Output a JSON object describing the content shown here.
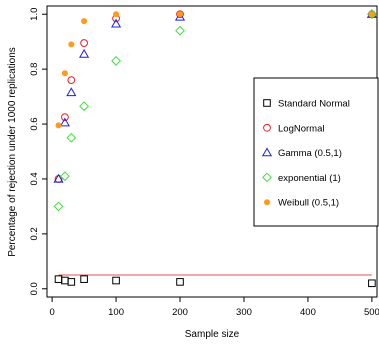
{
  "chart_data": {
    "type": "scatter",
    "title": "",
    "xlabel": "Sample size",
    "ylabel": "Percentage of rejection under 1000 replications",
    "xlim": [
      -8,
      508
    ],
    "ylim": [
      -0.03,
      1.03
    ],
    "x_ticks": [
      0,
      100,
      200,
      300,
      400,
      500
    ],
    "y_ticks": [
      0.0,
      0.2,
      0.4,
      0.6,
      0.8,
      1.0
    ],
    "x_tick_labels": [
      "0",
      "100",
      "200",
      "300",
      "400",
      "500"
    ],
    "y_tick_labels": [
      "0.0",
      "0.2",
      "0.4",
      "0.6",
      "0.8",
      "1.0"
    ],
    "grid": false,
    "legend_position": "right",
    "reference_line": {
      "y": 0.05,
      "x_range": [
        10,
        500
      ],
      "color": "#e05050"
    },
    "series": [
      {
        "name": "Standard Normal",
        "marker": "open-square",
        "color": "#000000",
        "x": [
          10,
          20,
          30,
          50,
          100,
          200,
          500
        ],
        "y": [
          0.035,
          0.03,
          0.025,
          0.035,
          0.03,
          0.025,
          0.02
        ]
      },
      {
        "name": "LogNormal",
        "marker": "open-circle",
        "color": "#e8212b",
        "x": [
          10,
          20,
          30,
          50,
          100,
          200,
          500
        ],
        "y": [
          0.4,
          0.625,
          0.76,
          0.895,
          0.985,
          1.0,
          1.0
        ]
      },
      {
        "name": "Gamma (0.5,1)",
        "marker": "open-triangle",
        "color": "#2020e0",
        "x": [
          10,
          20,
          30,
          50,
          100,
          200,
          500
        ],
        "y": [
          0.4,
          0.605,
          0.715,
          0.855,
          0.965,
          0.99,
          1.0
        ]
      },
      {
        "name": "exponential (1)",
        "marker": "open-diamond",
        "color": "#44dd44",
        "x": [
          10,
          20,
          30,
          50,
          100,
          200,
          500
        ],
        "y": [
          0.3,
          0.41,
          0.55,
          0.665,
          0.83,
          0.94,
          1.0
        ]
      },
      {
        "name": "Weibull (0.5,1)",
        "marker": "filled-circle",
        "color": "#ff9a1a",
        "x": [
          10,
          20,
          30,
          50,
          100,
          200,
          500
        ],
        "y": [
          0.595,
          0.785,
          0.89,
          0.975,
          1.0,
          1.0,
          1.0
        ]
      }
    ]
  }
}
